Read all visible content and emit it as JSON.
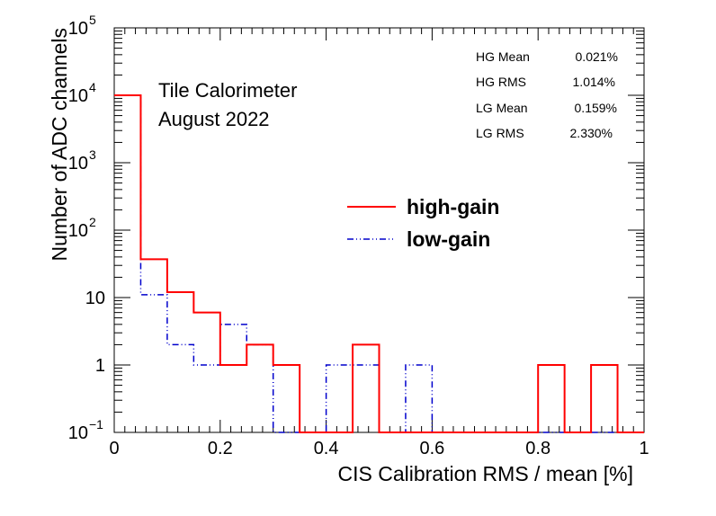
{
  "chart_data": {
    "type": "histogram",
    "xlabel": "CIS Calibration RMS / mean [%]",
    "ylabel": "Number of ADC channels",
    "xlim": [
      0,
      1
    ],
    "ylim": [
      0.1,
      100000
    ],
    "yscale": "log",
    "x_ticks": [
      "0",
      "0.2",
      "0.4",
      "0.6",
      "0.8",
      "1"
    ],
    "x_tick_values": [
      0,
      0.2,
      0.4,
      0.6,
      0.8,
      1
    ],
    "y_ticks": [
      {
        "value": 0.1,
        "base": "10",
        "exp": "−1"
      },
      {
        "value": 1,
        "base": "1",
        "exp": ""
      },
      {
        "value": 10,
        "base": "10",
        "exp": ""
      },
      {
        "value": 100,
        "base": "10",
        "exp": "2"
      },
      {
        "value": 1000,
        "base": "10",
        "exp": "3"
      },
      {
        "value": 10000,
        "base": "10",
        "exp": "4"
      },
      {
        "value": 100000,
        "base": "10",
        "exp": "5"
      }
    ],
    "bin_width": 0.05,
    "bin_edges": [
      0,
      0.05,
      0.1,
      0.15,
      0.2,
      0.25,
      0.3,
      0.35,
      0.4,
      0.45,
      0.5,
      0.55,
      0.6,
      0.65,
      0.7,
      0.75,
      0.8,
      0.85,
      0.9,
      0.95,
      1.0
    ],
    "grid": false,
    "legend_position": "center-right",
    "series": [
      {
        "name": "high-gain",
        "color": "#ff0000",
        "style": "solid",
        "values": [
          10000,
          37,
          12,
          6,
          1,
          2,
          1,
          0,
          0,
          2,
          0,
          0,
          0,
          0,
          0,
          0,
          1,
          0,
          1,
          0
        ]
      },
      {
        "name": "low-gain",
        "color": "#0000cc",
        "style": "dash-dot",
        "values": [
          10000,
          11,
          2,
          1,
          4,
          2,
          0,
          0,
          1,
          1,
          0,
          1,
          0,
          0,
          0,
          0,
          0,
          0,
          0,
          0
        ]
      }
    ],
    "annotations": {
      "experiment": [
        "Tile Calorimeter",
        "August 2022"
      ],
      "stats": [
        {
          "label": "HG Mean",
          "value": "0.021%"
        },
        {
          "label": "HG RMS",
          "value": "1.014%"
        },
        {
          "label": "LG Mean",
          "value": "0.159%"
        },
        {
          "label": "LG RMS",
          "value": "2.330%"
        }
      ]
    }
  }
}
